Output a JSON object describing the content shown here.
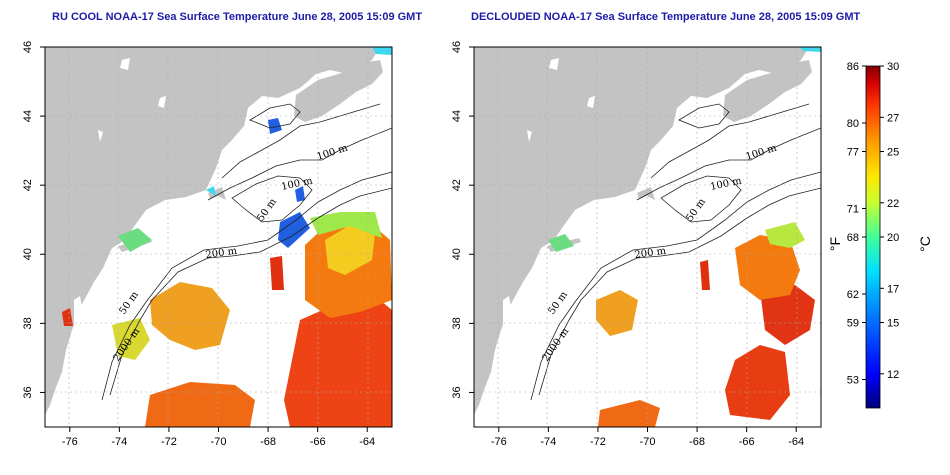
{
  "panels": [
    {
      "title": "RU COOL NOAA-17 Sea Surface Temperature June 28, 2005 15:09 GMT",
      "variant": "ru-cool"
    },
    {
      "title": "DECLOUDED NOAA-17 Sea Surface Temperature June 28, 2005 15:09 GMT",
      "variant": "declouded"
    }
  ],
  "axes": {
    "lon_range": [
      -77,
      -63
    ],
    "lat_range": [
      35,
      46
    ],
    "lon_ticks": [
      "-76",
      "-74",
      "-72",
      "-70",
      "-68",
      "-66",
      "-64"
    ],
    "lat_ticks": [
      "36",
      "38",
      "40",
      "42",
      "44",
      "46"
    ]
  },
  "contour_labels": [
    "100 m",
    "100 m",
    "50 m",
    "200 m",
    "50 m",
    "2000 m"
  ],
  "colorbar": {
    "fahrenheit_ticks": [
      "86",
      "80",
      "77",
      "71",
      "68",
      "62",
      "59",
      "53"
    ],
    "celsius_ticks": [
      "30",
      "27",
      "25",
      "22",
      "20",
      "17",
      "15",
      "12"
    ],
    "fahrenheit_label": "°F",
    "celsius_label": "°C",
    "range_c": [
      10,
      30
    ],
    "colors": [
      "#00007a",
      "#0000ff",
      "#0080ff",
      "#00e0ff",
      "#40ff9a",
      "#c8ff30",
      "#ffe600",
      "#ff9a00",
      "#ff3c00",
      "#d60000",
      "#800000"
    ]
  },
  "colors": {
    "land": "#c3c3c3",
    "title": "#1c1ca8",
    "grid": "#aaaaaa"
  }
}
